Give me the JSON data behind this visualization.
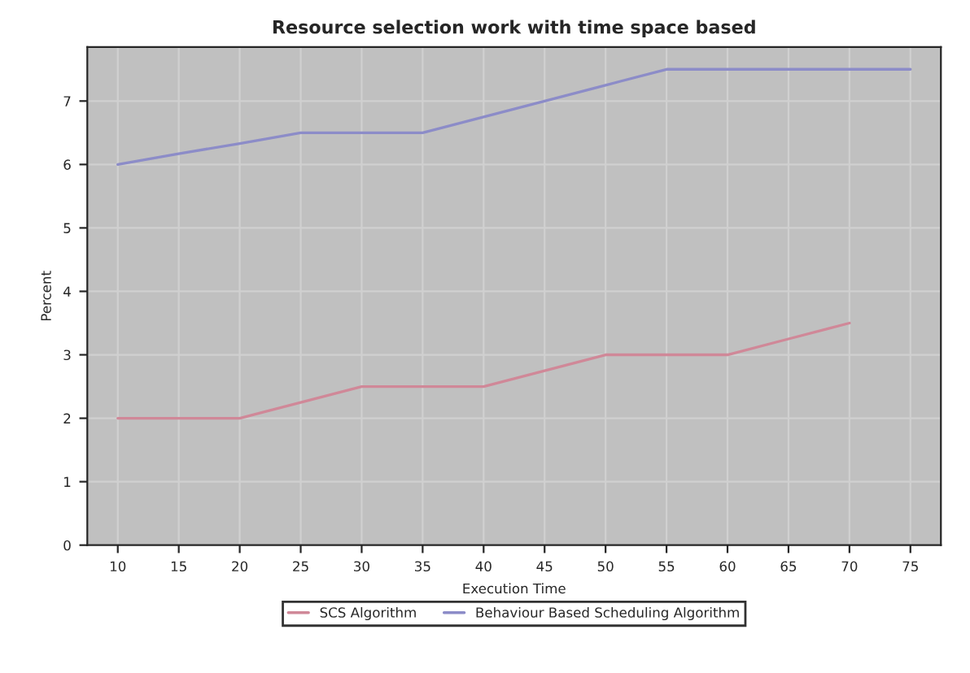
{
  "chart_data": {
    "type": "line",
    "title": "Resource selection work with time space based",
    "xlabel": "Execution Time",
    "ylabel": "Percent",
    "categories": [
      "10",
      "15",
      "20",
      "25",
      "30",
      "35",
      "40",
      "45",
      "50",
      "55",
      "60",
      "65",
      "70",
      "75"
    ],
    "series": [
      {
        "name": "SCS Algorithm",
        "color": "#d08898",
        "values": [
          2,
          2,
          2,
          2.25,
          2.5,
          2.5,
          2.5,
          2.75,
          3,
          3,
          3,
          3.25,
          3.5,
          null
        ]
      },
      {
        "name": "Behaviour Based Scheduling Algorithm",
        "color": "#8c8cc8",
        "values": [
          6,
          6.17,
          6.33,
          6.5,
          6.5,
          6.5,
          6.75,
          7,
          7.25,
          7.5,
          7.5,
          7.5,
          7.5,
          7.5
        ]
      }
    ],
    "ylim": [
      0,
      7.85
    ],
    "yticks": [
      0,
      1,
      2,
      3,
      4,
      5,
      6,
      7
    ],
    "grid": true,
    "legend": "bottom",
    "marker": "none",
    "line_style": "solid"
  }
}
